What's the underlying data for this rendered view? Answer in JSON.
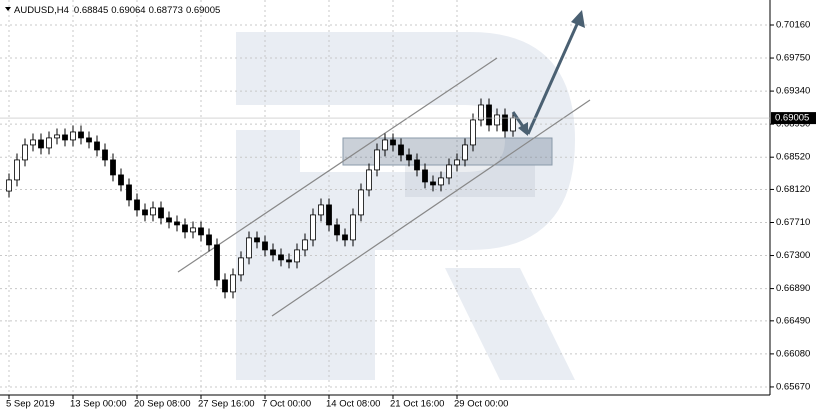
{
  "chart_data": {
    "type": "candlestick",
    "symbol": "AUDUSD,H4",
    "header_ohlc": [
      0.68845,
      0.69064,
      0.68773,
      0.69005
    ],
    "last_price": 0.69005,
    "up_color": "#ffffff",
    "down_color": "#000000",
    "grid": true,
    "categories": [
      "5 Sep 2019",
      null,
      null,
      null,
      null,
      null,
      null,
      null,
      "13 Sep 00:00",
      null,
      null,
      null,
      null,
      null,
      null,
      null,
      "20 Sep 08:00",
      null,
      null,
      null,
      null,
      null,
      null,
      null,
      "27 Sep 16:00",
      null,
      null,
      null,
      null,
      null,
      null,
      null,
      "7 Oct 00:00",
      null,
      null,
      null,
      null,
      null,
      null,
      null,
      "14 Oct 08:00",
      null,
      null,
      null,
      null,
      null,
      null,
      null,
      "21 Oct 16:00",
      null,
      null,
      null,
      null,
      null,
      null,
      null,
      "29 Oct 00:00",
      null,
      null,
      null,
      null,
      null,
      null,
      null
    ],
    "open": [
      0.681,
      0.68238,
      0.68486,
      0.68672,
      0.68734,
      0.68635,
      0.68759,
      0.68796,
      0.68734,
      0.68833,
      0.68759,
      0.68709,
      0.6861,
      0.68486,
      0.683,
      0.68176,
      0.6799,
      0.67866,
      0.67804,
      0.67891,
      0.67767,
      0.67717,
      0.6768,
      0.67593,
      0.67643,
      0.67556,
      0.67432,
      0.66998,
      0.66849,
      0.6706,
      0.67271,
      0.67519,
      0.67469,
      0.6737,
      0.67308,
      0.67246,
      0.67221,
      0.6737,
      0.67494,
      0.67804,
      0.67928,
      0.6768,
      0.67556,
      0.67494,
      0.67804,
      0.68114,
      0.68362,
      0.6861,
      0.68734,
      0.68672,
      0.68548,
      0.68486,
      0.68362,
      0.68213,
      0.68176,
      0.68263,
      0.68424,
      0.68486,
      0.68672,
      0.68982,
      0.69168,
      0.6892,
      0.69044,
      0.68845
    ],
    "high": [
      0.68318,
      0.68566,
      0.68752,
      0.68814,
      0.68814,
      0.68839,
      0.68876,
      0.68876,
      0.68913,
      0.68913,
      0.68839,
      0.68789,
      0.6869,
      0.68566,
      0.6838,
      0.68256,
      0.6807,
      0.67946,
      0.67971,
      0.67971,
      0.67847,
      0.67797,
      0.6776,
      0.67723,
      0.67723,
      0.67636,
      0.67512,
      0.67078,
      0.6714,
      0.67351,
      0.67599,
      0.67599,
      0.67549,
      0.6745,
      0.67388,
      0.67326,
      0.6745,
      0.67574,
      0.67884,
      0.68008,
      0.68008,
      0.6776,
      0.67636,
      0.67884,
      0.68194,
      0.68442,
      0.6869,
      0.68814,
      0.68814,
      0.68752,
      0.68628,
      0.68566,
      0.68442,
      0.68293,
      0.68343,
      0.68504,
      0.68566,
      0.68752,
      0.69062,
      0.69248,
      0.69248,
      0.69124,
      0.69124,
      0.69064
    ],
    "low": [
      0.6802,
      0.68158,
      0.68406,
      0.68592,
      0.68555,
      0.68555,
      0.68679,
      0.68654,
      0.68654,
      0.68679,
      0.68629,
      0.6853,
      0.68406,
      0.6822,
      0.68096,
      0.6791,
      0.67786,
      0.67724,
      0.67724,
      0.67687,
      0.67637,
      0.676,
      0.67513,
      0.67513,
      0.67476,
      0.67352,
      0.66918,
      0.66769,
      0.66769,
      0.6698,
      0.67191,
      0.67389,
      0.6729,
      0.67228,
      0.67166,
      0.67141,
      0.67141,
      0.6729,
      0.67414,
      0.67724,
      0.676,
      0.67476,
      0.67414,
      0.67414,
      0.67724,
      0.68034,
      0.68282,
      0.6853,
      0.68592,
      0.68468,
      0.68406,
      0.68282,
      0.68133,
      0.68096,
      0.68096,
      0.68183,
      0.68344,
      0.68406,
      0.68592,
      0.68902,
      0.6884,
      0.6884,
      0.68765,
      0.68773
    ],
    "close": [
      0.68238,
      0.68486,
      0.68672,
      0.68734,
      0.68635,
      0.68759,
      0.68796,
      0.68734,
      0.68833,
      0.68759,
      0.68709,
      0.6861,
      0.68486,
      0.683,
      0.68176,
      0.6799,
      0.67866,
      0.67804,
      0.67891,
      0.67767,
      0.67717,
      0.6768,
      0.67593,
      0.67643,
      0.67556,
      0.67432,
      0.66998,
      0.66849,
      0.6706,
      0.67271,
      0.67519,
      0.67469,
      0.6737,
      0.67308,
      0.67246,
      0.67221,
      0.6737,
      0.67494,
      0.67804,
      0.67928,
      0.6768,
      0.67556,
      0.67494,
      0.67804,
      0.68114,
      0.68362,
      0.6861,
      0.68734,
      0.68672,
      0.68548,
      0.68486,
      0.68362,
      0.68213,
      0.68176,
      0.68263,
      0.68424,
      0.68486,
      0.68672,
      0.68982,
      0.69168,
      0.6892,
      0.69044,
      0.68845,
      0.69005
    ],
    "ylim": [
      0.6557,
      0.7047
    ],
    "yticks": [
      {
        "value": 0.7016,
        "label": "0.70160"
      },
      {
        "value": 0.6975,
        "label": "0.69750"
      },
      {
        "value": 0.6934,
        "label": "0.69340"
      },
      {
        "value": 0.6893,
        "label": "0.68930"
      },
      {
        "value": 0.6852,
        "label": "0.68520"
      },
      {
        "value": 0.6812,
        "label": "0.68120"
      },
      {
        "value": 0.6771,
        "label": "0.67710"
      },
      {
        "value": 0.673,
        "label": "0.67300"
      },
      {
        "value": 0.6689,
        "label": "0.66890"
      },
      {
        "value": 0.6649,
        "label": "0.66490"
      },
      {
        "value": 0.6608,
        "label": "0.66080"
      },
      {
        "value": 0.6567,
        "label": "0.65670"
      }
    ]
  }
}
